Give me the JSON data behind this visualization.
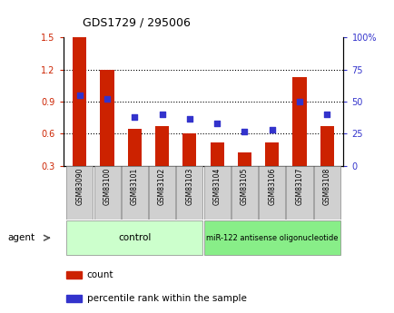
{
  "title": "GDS1729 / 295006",
  "categories": [
    "GSM83090",
    "GSM83100",
    "GSM83101",
    "GSM83102",
    "GSM83103",
    "GSM83104",
    "GSM83105",
    "GSM83106",
    "GSM83107",
    "GSM83108"
  ],
  "red_values": [
    1.5,
    1.2,
    0.65,
    0.67,
    0.6,
    0.52,
    0.43,
    0.52,
    1.13,
    0.67
  ],
  "blue_values": [
    55,
    52,
    38,
    40,
    37,
    33,
    27,
    28,
    50,
    40
  ],
  "ylim_left": [
    0.3,
    1.5
  ],
  "ylim_right": [
    0,
    100
  ],
  "yticks_left": [
    0.3,
    0.6,
    0.9,
    1.2,
    1.5
  ],
  "yticks_right": [
    0,
    25,
    50,
    75,
    100
  ],
  "ytick_labels_right": [
    "0",
    "25",
    "50",
    "75",
    "100%"
  ],
  "red_color": "#cc2200",
  "blue_color": "#3333cc",
  "bar_width": 0.5,
  "control_label": "control",
  "treatment_label": "miR-122 antisense oligonucleotide",
  "agent_label": "agent",
  "legend_count": "count",
  "legend_percentile": "percentile rank within the sample",
  "bg_color": "#ffffff",
  "tick_label_color_left": "#cc2200",
  "tick_label_color_right": "#3333cc",
  "control_bg": "#ccffcc",
  "treatment_bg": "#88ee88",
  "xlabel_bg": "#d0d0d0",
  "grid_dotted_vals": [
    0.6,
    0.9,
    1.2
  ],
  "n_control": 5,
  "n_treatment": 5
}
